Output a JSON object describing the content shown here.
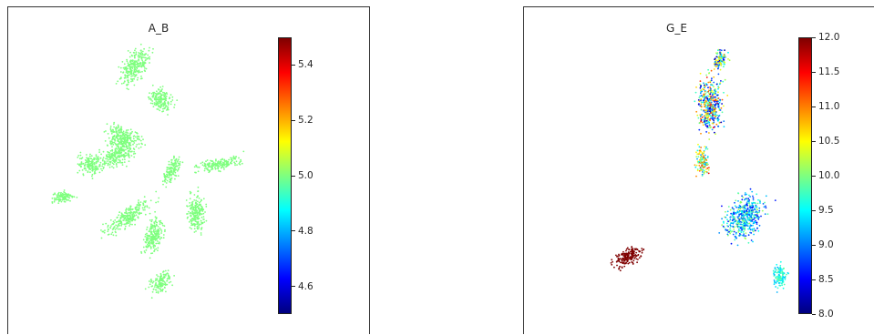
{
  "colormap": [
    "#00007f",
    "#0000ff",
    "#007fff",
    "#00ffff",
    "#7fff7f",
    "#ffff00",
    "#ff7f00",
    "#ff0000",
    "#7f0000"
  ],
  "chart_data": [
    {
      "type": "scatter",
      "title": "A_B",
      "colorbar": {
        "min": 4.5,
        "max": 5.5,
        "ticks": [
          "4.6",
          "4.8",
          "5.0",
          "5.2",
          "5.4"
        ],
        "tick_values": [
          4.6,
          4.8,
          5.0,
          5.2,
          5.4
        ]
      },
      "point_value": 5.0,
      "clusters": [
        {
          "x": 0.35,
          "y": 0.18,
          "w": 0.05,
          "h": 0.1,
          "rot": 30
        },
        {
          "x": 0.42,
          "y": 0.28,
          "w": 0.06,
          "h": 0.05,
          "rot": 40
        },
        {
          "x": 0.32,
          "y": 0.4,
          "w": 0.08,
          "h": 0.06,
          "rot": 20
        },
        {
          "x": 0.23,
          "y": 0.48,
          "w": 0.06,
          "h": 0.05,
          "rot": 0
        },
        {
          "x": 0.3,
          "y": 0.45,
          "w": 0.05,
          "h": 0.08,
          "rot": 60
        },
        {
          "x": 0.15,
          "y": 0.58,
          "w": 0.05,
          "h": 0.03,
          "rot": 0
        },
        {
          "x": 0.45,
          "y": 0.5,
          "w": 0.03,
          "h": 0.08,
          "rot": 30
        },
        {
          "x": 0.58,
          "y": 0.48,
          "w": 0.11,
          "h": 0.03,
          "rot": -10
        },
        {
          "x": 0.33,
          "y": 0.64,
          "w": 0.12,
          "h": 0.04,
          "rot": -35
        },
        {
          "x": 0.4,
          "y": 0.7,
          "w": 0.04,
          "h": 0.1,
          "rot": 15
        },
        {
          "x": 0.52,
          "y": 0.63,
          "w": 0.04,
          "h": 0.1,
          "rot": -5
        },
        {
          "x": 0.42,
          "y": 0.84,
          "w": 0.06,
          "h": 0.04,
          "rot": -40
        }
      ]
    },
    {
      "type": "scatter",
      "title": "G_E",
      "colorbar": {
        "min": 8.0,
        "max": 12.0,
        "ticks": [
          "8.0",
          "8.5",
          "9.0",
          "9.5",
          "10.0",
          "10.5",
          "11.0",
          "11.5",
          "12.0"
        ],
        "tick_values": [
          8.0,
          8.5,
          9.0,
          9.5,
          10.0,
          10.5,
          11.0,
          11.5,
          12.0
        ]
      },
      "clusters": [
        {
          "x": 0.53,
          "y": 0.3,
          "w": 0.06,
          "h": 0.14,
          "rot": 0,
          "vmin": 8.2,
          "vmax": 11.5
        },
        {
          "x": 0.56,
          "y": 0.16,
          "w": 0.03,
          "h": 0.05,
          "rot": 20,
          "vmin": 8.0,
          "vmax": 11.0
        },
        {
          "x": 0.51,
          "y": 0.47,
          "w": 0.03,
          "h": 0.07,
          "rot": 0,
          "vmin": 9.0,
          "vmax": 11.5
        },
        {
          "x": 0.3,
          "y": 0.76,
          "w": 0.08,
          "h": 0.04,
          "rot": -25,
          "vmin": 12.0,
          "vmax": 12.0
        },
        {
          "x": 0.63,
          "y": 0.64,
          "w": 0.08,
          "h": 0.12,
          "rot": 30,
          "vmin": 8.5,
          "vmax": 10.2
        },
        {
          "x": 0.73,
          "y": 0.82,
          "w": 0.03,
          "h": 0.06,
          "rot": 0,
          "vmin": 9.2,
          "vmax": 10.0
        }
      ]
    }
  ]
}
